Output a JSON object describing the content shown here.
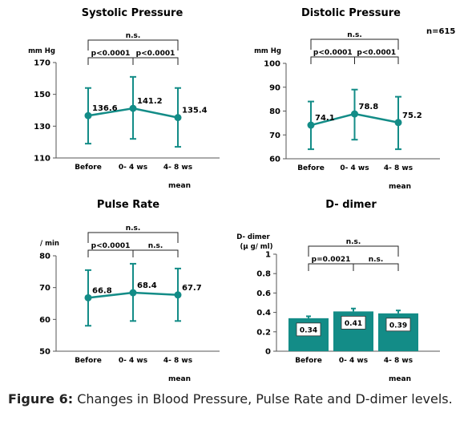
{
  "figure": {
    "caption_label": "Figure 6:",
    "caption_text": " Changes in Blood Pressure, Pulse Rate and D-dimer levels.",
    "sample_size": "n=615",
    "teal": "#138c87"
  },
  "chart_data": [
    {
      "id": "systolic",
      "type": "line",
      "title": "Systolic Pressure",
      "ylabel": "mm Hg",
      "xlabel": "mean",
      "categories": [
        "Before",
        "0- 4 ws",
        "4- 8 ws"
      ],
      "values": [
        136.6,
        141.2,
        135.4
      ],
      "labels": [
        "136.6",
        "141.2",
        "135.4"
      ],
      "error_low": [
        119,
        122,
        117
      ],
      "error_high": [
        154,
        161,
        154
      ],
      "ylim": [
        110,
        170
      ],
      "yticks": [
        110,
        130,
        150,
        170
      ],
      "show_xlabel": true,
      "significance": [
        {
          "from": 0,
          "to": 1,
          "label": "p<0.0001",
          "level": 1
        },
        {
          "from": 1,
          "to": 2,
          "label": "p<0.0001",
          "level": 1
        },
        {
          "from": 0,
          "to": 2,
          "label": "n.s.",
          "level": 2
        }
      ]
    },
    {
      "id": "diastolic",
      "type": "line",
      "title": "Distolic Pressure",
      "ylabel": "mm Hg",
      "xlabel": "mean",
      "categories": [
        "Before",
        "0- 4 ws",
        "4- 8 ws"
      ],
      "values": [
        74.1,
        78.8,
        75.2
      ],
      "labels": [
        "74.1",
        "78.8",
        "75.2"
      ],
      "error_low": [
        64,
        68,
        64
      ],
      "error_high": [
        84,
        89,
        86
      ],
      "ylim": [
        60,
        100
      ],
      "yticks": [
        60,
        70,
        80,
        90,
        100
      ],
      "show_xlabel": true,
      "significance": [
        {
          "from": 0,
          "to": 1,
          "label": "p<0.0001",
          "level": 1
        },
        {
          "from": 1,
          "to": 2,
          "label": "p<0.0001",
          "level": 1
        },
        {
          "from": 0,
          "to": 2,
          "label": "n.s.",
          "level": 2
        }
      ]
    },
    {
      "id": "pulse",
      "type": "line",
      "title": "Pulse Rate",
      "ylabel": "/ min",
      "xlabel": "mean",
      "categories": [
        "Before",
        "0- 4 ws",
        "4- 8 ws"
      ],
      "values": [
        66.8,
        68.4,
        67.7
      ],
      "labels": [
        "66.8",
        "68.4",
        "67.7"
      ],
      "error_low": [
        58,
        59.5,
        59.5
      ],
      "error_high": [
        75.5,
        77.5,
        76
      ],
      "ylim": [
        50,
        80
      ],
      "yticks": [
        50,
        60,
        70,
        80
      ],
      "show_xlabel": true,
      "significance": [
        {
          "from": 0,
          "to": 1,
          "label": "p<0.0001",
          "level": 1
        },
        {
          "from": 1,
          "to": 2,
          "label": "n.s.",
          "level": 1
        },
        {
          "from": 0,
          "to": 2,
          "label": "n.s.",
          "level": 2
        }
      ]
    },
    {
      "id": "ddimer",
      "type": "bar",
      "title": "D- dimer",
      "ylabel": "D- dimer",
      "ylabel2": "(μ g/ ml)",
      "xlabel": "mean",
      "categories": [
        "Before",
        "0- 4 ws",
        "4- 8 ws"
      ],
      "values": [
        0.34,
        0.41,
        0.39
      ],
      "labels": [
        "0.34",
        "0.41",
        "0.39"
      ],
      "error_high": [
        0.36,
        0.44,
        0.42
      ],
      "ylim": [
        0,
        1
      ],
      "yticks": [
        0,
        0.2,
        0.4,
        0.6,
        0.8,
        1
      ],
      "ytick_labels": [
        "0",
        "0.2",
        "0.4",
        "0.6",
        "0.8",
        "1"
      ],
      "show_xlabel": true,
      "significance": [
        {
          "from": 0,
          "to": 1,
          "label": "p=0.0021",
          "level": 1
        },
        {
          "from": 1,
          "to": 2,
          "label": "n.s.",
          "level": 1
        },
        {
          "from": 0,
          "to": 2,
          "label": "n.s.",
          "level": 2
        }
      ]
    }
  ]
}
